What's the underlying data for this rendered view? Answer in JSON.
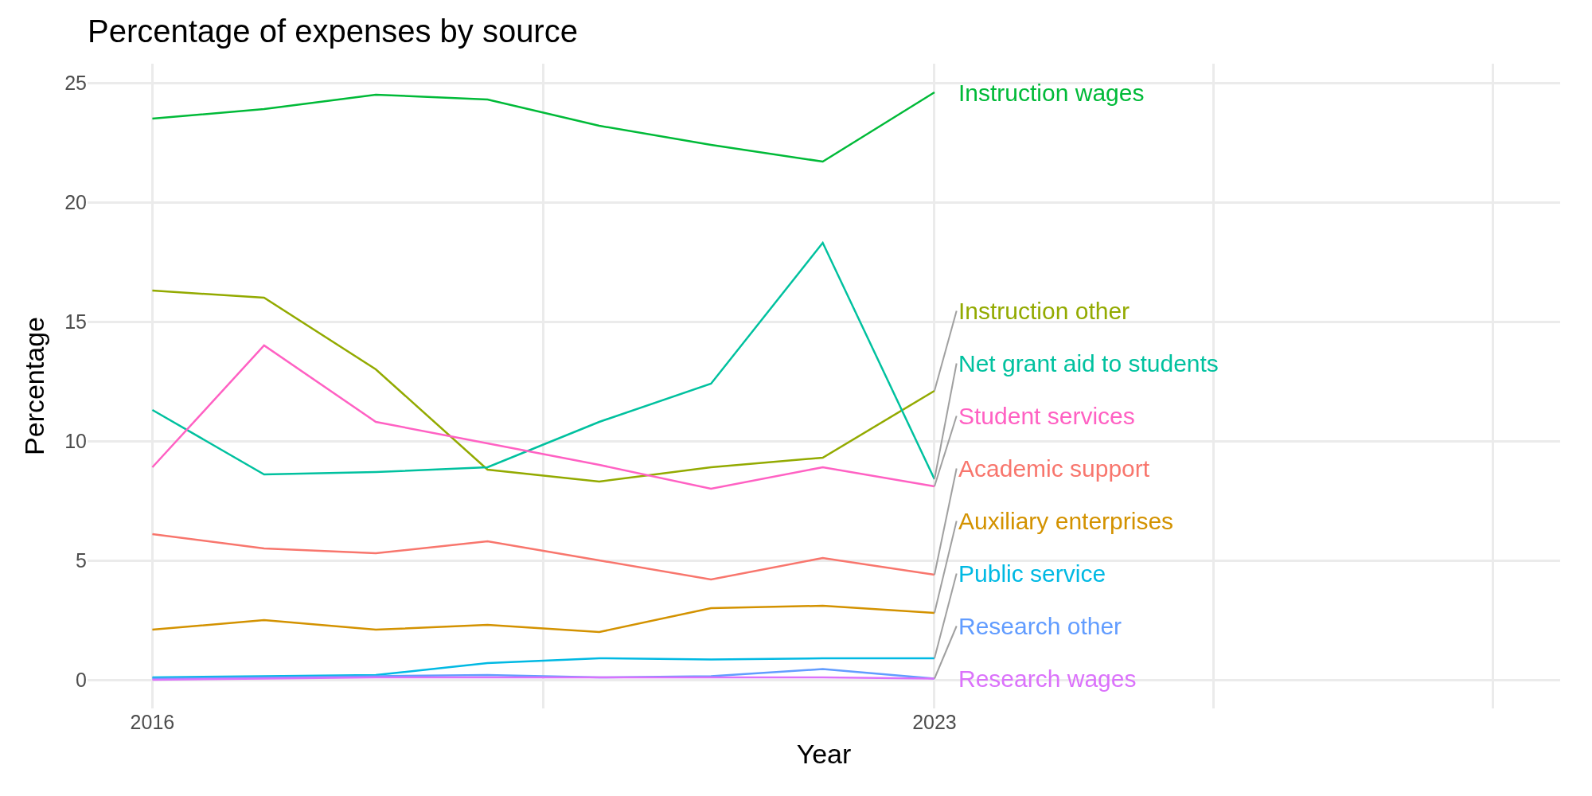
{
  "chart_data": {
    "type": "line",
    "title": "Percentage of expenses by source",
    "xlabel": "Year",
    "ylabel": "Percentage",
    "x": [
      2016,
      2017,
      2018,
      2019,
      2020,
      2021,
      2022,
      2023
    ],
    "xlim": [
      2015.42,
      2028.6
    ],
    "xticks": [
      2016,
      {
        "value": 2019.5,
        "label": null
      },
      2023,
      {
        "value": 2025.5,
        "label": null
      },
      {
        "value": 2028,
        "label": null
      }
    ],
    "ylim": [
      -1.2,
      25.8
    ],
    "yticks": [
      0,
      5,
      10,
      15,
      20,
      25
    ],
    "grid": true,
    "legend": false,
    "marker": "none",
    "line_style": "solid",
    "series": [
      {
        "name": "Academic support",
        "color": "#f8766d",
        "values": [
          6.1,
          5.5,
          5.3,
          5.8,
          5.0,
          4.2,
          5.1,
          4.4
        ]
      },
      {
        "name": "Auxiliary enterprises",
        "color": "#d39200",
        "values": [
          2.1,
          2.5,
          2.1,
          2.3,
          2.0,
          3.0,
          3.1,
          2.8
        ]
      },
      {
        "name": "Instruction other",
        "color": "#93aa00",
        "values": [
          16.3,
          16.0,
          13.0,
          8.8,
          8.3,
          8.9,
          9.3,
          12.1
        ]
      },
      {
        "name": "Instruction wages",
        "color": "#00ba38",
        "values": [
          23.5,
          23.9,
          24.5,
          24.3,
          23.2,
          22.4,
          21.7,
          24.6
        ]
      },
      {
        "name": "Net grant aid to students",
        "color": "#00c19f",
        "values": [
          11.3,
          8.6,
          8.7,
          8.9,
          10.8,
          12.4,
          18.3,
          8.4
        ]
      },
      {
        "name": "Public service",
        "color": "#00b9e3",
        "values": [
          0.1,
          0.15,
          0.2,
          0.7,
          0.9,
          0.85,
          0.9,
          0.9
        ]
      },
      {
        "name": "Research other",
        "color": "#619cff",
        "values": [
          0.05,
          0.1,
          0.15,
          0.2,
          0.1,
          0.15,
          0.45,
          0.05
        ]
      },
      {
        "name": "Research wages",
        "color": "#db72fb",
        "values": [
          0.0,
          0.05,
          0.1,
          0.1,
          0.1,
          0.1,
          0.1,
          0.05
        ]
      },
      {
        "name": "Student services",
        "color": "#ff61c3",
        "values": [
          8.9,
          14.0,
          10.8,
          9.9,
          9.0,
          8.0,
          8.9,
          8.1
        ]
      }
    ]
  }
}
